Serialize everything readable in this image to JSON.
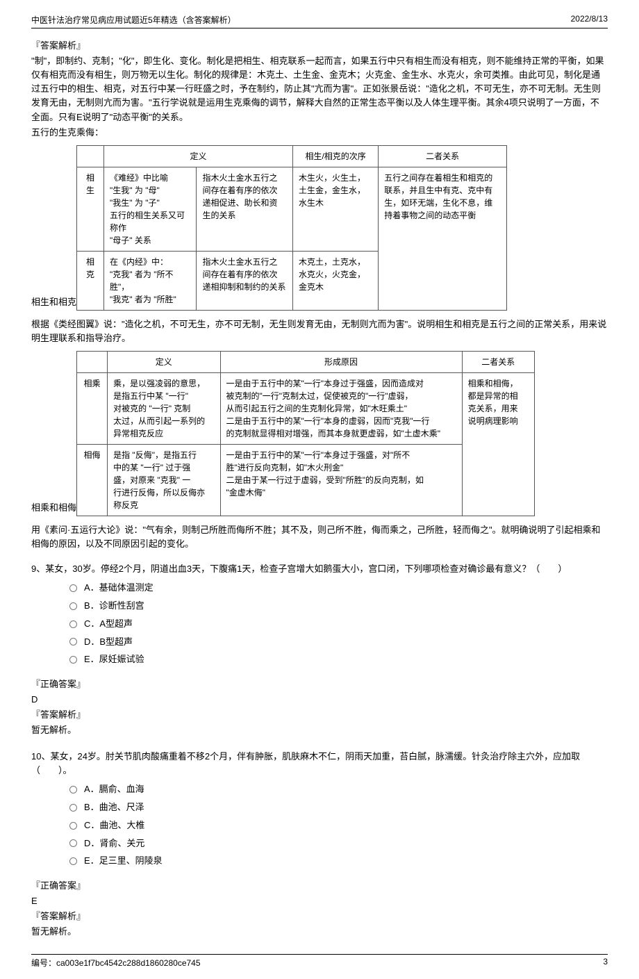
{
  "header": {
    "title": "中医针法治疗常见病应用试题近5年精选（含答案解析）",
    "date": "2022/8/13"
  },
  "explain_label": "『答案解析』",
  "correct_label": "『正确答案』",
  "para1": "\"制\"，即制约、克制；\"化\"，即生化、变化。制化是把相生、相克联系一起而言，如果五行中只有相生而没有相克，则不能维持正常的平衡，如果仅有相克而没有相生，则万物无以生化。制化的规律是：木克土、土生金、金克木；火克金、金生水、水克火，余可类推。由此可见，制化是通过五行中的相生、相克，对五行中某一行旺盛之时，予在制约，防止其\"亢而为害\"。正如张景岳说：\"造化之机，不可无生，亦不可无制。无生则发育无由，无制则亢而为害。\"五行学说就是运用生克乘侮的调节，解释大自然的正常生态平衡以及人体生理平衡。其余4项只说明了一方面，不全面。只有E说明了\"动态平衡\"的关系。",
  "para2": "五行的生克乘侮：",
  "table1": {
    "caption": "相生和相克",
    "headers": [
      "",
      "定义",
      "",
      "相生/相克的次序",
      "二者关系"
    ],
    "row1": [
      "相生",
      "《难经》中比喻\n\"生我\" 为 \"母\"\n\"我生\" 为 \"子\"\n五行的相生关系又可称作\n\"母子\" 关系",
      "指木火土金水五行之\n间存在着有序的依次\n递相促进、助长和资\n生的关系",
      "木生火，火生土，\n土生金，金生水，\n水生木",
      "五行之间存在着相生和相克的\n联系，并且生中有克、克中有\n生，如环无端，生化不息，维\n持着事物之间的动态平衡"
    ],
    "row2": [
      "相克",
      "在《内经》中：\n\"克我\" 者为 \"所不胜\"，\n\"我克\" 者为 \"所胜\"",
      "指木火土金水五行之\n间存在着有序的依次\n递相抑制和制约的关系",
      "木克土，土克水，\n水克火，火克金，\n金克木",
      ""
    ]
  },
  "para3": "根据《类经图翼》说：\"造化之机，不可无生，亦不可无制，无生则发育无由，无制则亢而为害\"。说明相生和相克是五行之间的正常关系，用来说明生理联系和指导治疗。",
  "table2": {
    "caption": "相乘和相侮",
    "headers": [
      "",
      "定义",
      "形成原因",
      "二者关系"
    ],
    "row1": [
      "相乘",
      "乘，是以强凌弱的意思，\n是指五行中某 \"一行\"\n对被克的 \"一行\" 克制\n太过，从而引起一系列的\n异常相克反应",
      "一是由于五行中的某\"一行\"本身过于强盛，因而造成对\n被克制的\"一行\"克制太过，促使被克的\"一行\"虚弱，\n从而引起五行之间的生克制化异常，如\"木旺乘土\"\n二是由于五行中的某\"一行\"本身的虚弱，因而\"克我\"一行\n的克制就显得相对增强，而其本身就更虚弱，如\"土虚木乘\"",
      "相乘和相侮，\n都是异常的相\n克关系，用来\n说明病理影响"
    ],
    "row2": [
      "相侮",
      "是指 \"反侮\"，是指五行\n中的某 \"一行\" 过于强\n盛，对原来 \"克我\" 一\n行进行反侮，所以反侮亦\n称反克",
      "一是由于五行中的某\"一行\"本身过于强盛，对\"所不\n胜\"进行反向克制，如\"木火刑金\"\n二是由于某一行过于虚弱，受到\"所胜\"的反向克制，如\n\"金虚木侮\"",
      ""
    ]
  },
  "para4": "用《素问·五运行大论》说：\"气有余，则制己所胜而侮所不胜；其不及，则己所不胜，侮而乘之，己所胜，轻而侮之\"。就明确说明了引起相乘和相侮的原因，以及不同原因引起的变化。",
  "q9": {
    "stem": "9、某女，30岁。停经2个月，阴道出血3天，下腹痛1天，检查子宫增大如鹅蛋大小，宫口闭，下列哪项检查对确诊最有意义？（　　）",
    "opts": {
      "A": "A．基础体温测定",
      "B": "B．诊断性刮宫",
      "C": "C．A型超声",
      "D": "D．B型超声",
      "E": "E．尿妊娠试验"
    },
    "answer": "D",
    "explain": "暂无解析。"
  },
  "q10": {
    "stem": "10、某女，24岁。肘关节肌肉酸痛重着不移2个月，伴有肿胀，肌肤麻木不仁，阴雨天加重，苔白腻，脉濡缓。针灸治疗除主穴外，应加取（　　）。",
    "opts": {
      "A": "A．膈俞、血海",
      "B": "B．曲池、尺泽",
      "C": "C．曲池、大椎",
      "D": "D．肾俞、关元",
      "E": "E．足三里、阴陵泉"
    },
    "answer": "E",
    "explain": "暂无解析。"
  },
  "footer": {
    "serial": "编号：ca003e1f7bc4542c288d1860280ce745",
    "page": "3"
  }
}
